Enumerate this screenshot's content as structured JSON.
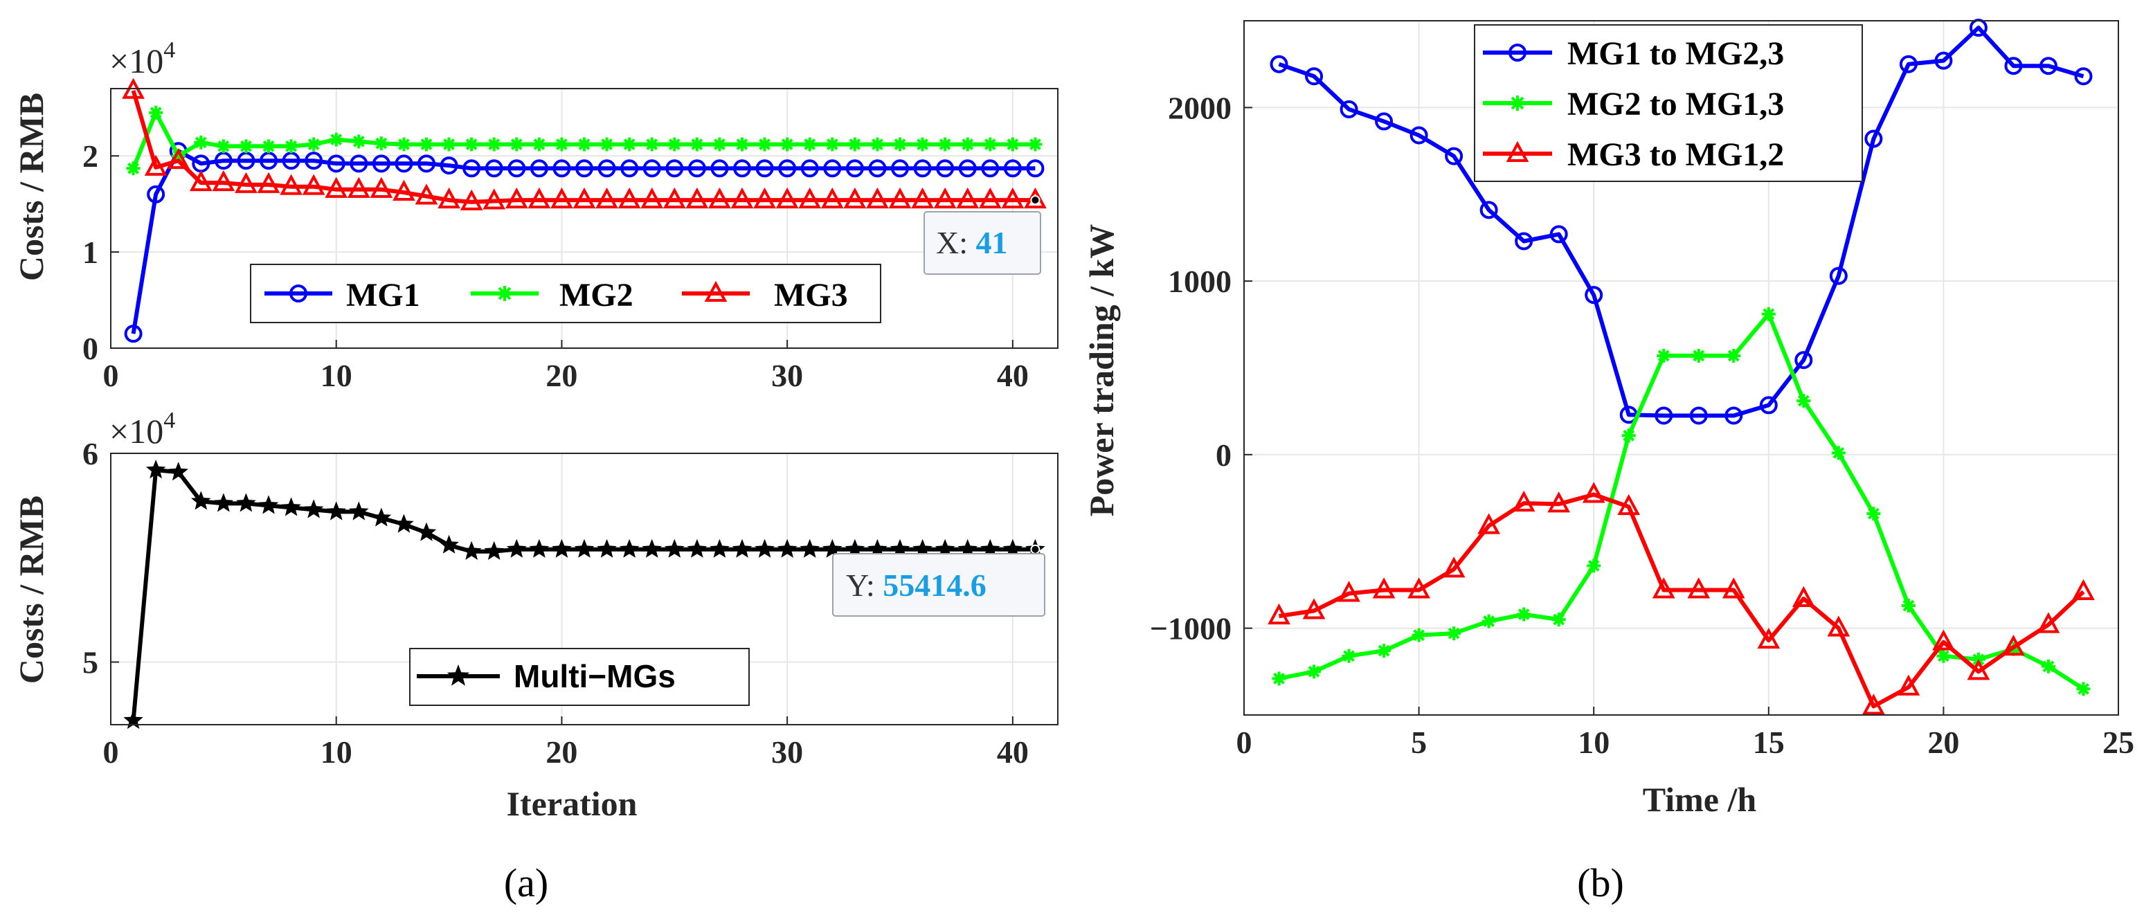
{
  "panels": {
    "a": {
      "caption": "(a)"
    },
    "b": {
      "caption": "(b)"
    }
  },
  "chart_data": [
    {
      "id": "a-top",
      "type": "line",
      "title": "",
      "xlabel": "",
      "ylabel": "Costs / RMB",
      "scale_label": "×10",
      "scale_exp": "4",
      "xlim": [
        0,
        42
      ],
      "ylim": [
        0,
        2.7
      ],
      "xticks": [
        0,
        10,
        20,
        30,
        40
      ],
      "yticks": [
        0,
        1,
        2
      ],
      "grid": true,
      "legend_position": "bottom-center",
      "x": [
        1,
        2,
        3,
        4,
        5,
        6,
        7,
        8,
        9,
        10,
        11,
        12,
        13,
        14,
        15,
        16,
        17,
        18,
        19,
        20,
        21,
        22,
        23,
        24,
        25,
        26,
        27,
        28,
        29,
        30,
        31,
        32,
        33,
        34,
        35,
        36,
        37,
        38,
        39,
        40,
        41
      ],
      "series": [
        {
          "name": "MG1",
          "color": "#0000ff",
          "marker": "circle",
          "values": [
            0.15,
            1.6,
            2.05,
            1.92,
            1.95,
            1.95,
            1.95,
            1.95,
            1.95,
            1.92,
            1.92,
            1.92,
            1.92,
            1.92,
            1.9,
            1.87,
            1.87,
            1.87,
            1.87,
            1.87,
            1.87,
            1.87,
            1.87,
            1.87,
            1.87,
            1.87,
            1.87,
            1.87,
            1.87,
            1.87,
            1.87,
            1.87,
            1.87,
            1.87,
            1.87,
            1.87,
            1.87,
            1.87,
            1.87,
            1.87,
            1.87
          ]
        },
        {
          "name": "MG2",
          "color": "#00ff00",
          "marker": "asterisk",
          "values": [
            1.87,
            2.45,
            2.0,
            2.14,
            2.1,
            2.1,
            2.1,
            2.1,
            2.12,
            2.17,
            2.15,
            2.13,
            2.12,
            2.12,
            2.12,
            2.12,
            2.12,
            2.12,
            2.12,
            2.12,
            2.12,
            2.12,
            2.12,
            2.12,
            2.12,
            2.12,
            2.12,
            2.12,
            2.12,
            2.12,
            2.12,
            2.12,
            2.12,
            2.12,
            2.12,
            2.12,
            2.12,
            2.12,
            2.12,
            2.12,
            2.12
          ]
        },
        {
          "name": "MG3",
          "color": "#ff0000",
          "marker": "triangle",
          "values": [
            2.68,
            1.88,
            1.95,
            1.72,
            1.72,
            1.7,
            1.7,
            1.68,
            1.68,
            1.65,
            1.65,
            1.65,
            1.62,
            1.58,
            1.54,
            1.52,
            1.53,
            1.54,
            1.54,
            1.54,
            1.54,
            1.54,
            1.54,
            1.54,
            1.54,
            1.54,
            1.54,
            1.54,
            1.54,
            1.54,
            1.54,
            1.54,
            1.54,
            1.54,
            1.54,
            1.54,
            1.54,
            1.54,
            1.54,
            1.54,
            1.54
          ]
        }
      ],
      "datatip": {
        "x": 41,
        "label": "X: ",
        "value": "41"
      }
    },
    {
      "id": "a-bottom",
      "type": "line",
      "title": "",
      "xlabel": "Iteration",
      "ylabel": "Costs / RMB",
      "scale_label": "×10",
      "scale_exp": "4",
      "xlim": [
        0,
        42
      ],
      "ylim": [
        4.7,
        6.0
      ],
      "xticks": [
        0,
        10,
        20,
        30,
        40
      ],
      "yticks": [
        5,
        6
      ],
      "yticklabels": [
        "5",
        "6"
      ],
      "grid": true,
      "legend_position": "bottom-center",
      "x": [
        1,
        2,
        3,
        4,
        5,
        6,
        7,
        8,
        9,
        10,
        11,
        12,
        13,
        14,
        15,
        16,
        17,
        18,
        19,
        20,
        21,
        22,
        23,
        24,
        25,
        26,
        27,
        28,
        29,
        30,
        31,
        32,
        33,
        34,
        35,
        36,
        37,
        38,
        39,
        40,
        41
      ],
      "series": [
        {
          "name": "Multi−MGs",
          "color": "#000000",
          "marker": "star",
          "values": [
            4.72,
            5.92,
            5.91,
            5.77,
            5.76,
            5.76,
            5.75,
            5.74,
            5.73,
            5.72,
            5.72,
            5.69,
            5.66,
            5.62,
            5.56,
            5.53,
            5.53,
            5.54,
            5.54,
            5.54,
            5.54,
            5.54,
            5.54,
            5.54,
            5.54,
            5.54,
            5.54,
            5.54,
            5.54,
            5.54,
            5.54,
            5.54,
            5.54,
            5.54,
            5.54,
            5.54,
            5.54,
            5.54,
            5.54,
            5.54,
            5.54
          ]
        }
      ],
      "datatip": {
        "x": 41,
        "label": "Y: ",
        "value": "55414.6"
      }
    },
    {
      "id": "b",
      "type": "line",
      "title": "",
      "xlabel": "Time /h",
      "ylabel": "Power trading / kW",
      "xlim": [
        0,
        25
      ],
      "ylim": [
        -1500,
        2500
      ],
      "xticks": [
        0,
        5,
        10,
        15,
        20,
        25
      ],
      "yticks": [
        -1000,
        0,
        1000,
        2000
      ],
      "yticklabels": [
        "−1000",
        "0",
        "1000",
        "2000"
      ],
      "grid": true,
      "legend_position": "top-center",
      "x": [
        1,
        2,
        3,
        4,
        5,
        6,
        7,
        8,
        9,
        10,
        11,
        12,
        13,
        14,
        15,
        16,
        17,
        18,
        19,
        20,
        21,
        22,
        23,
        24
      ],
      "series": [
        {
          "name": "MG1 to MG2,3",
          "color": "#0000ff",
          "marker": "circle",
          "values": [
            2250,
            2180,
            1990,
            1920,
            1840,
            1720,
            1410,
            1230,
            1270,
            920,
            230,
            225,
            225,
            225,
            285,
            545,
            1030,
            1820,
            2250,
            2270,
            2460,
            2240,
            2240,
            2180
          ]
        },
        {
          "name": "MG2 to MG1,3",
          "color": "#00ff00",
          "marker": "asterisk",
          "values": [
            -1290,
            -1250,
            -1160,
            -1130,
            -1040,
            -1030,
            -960,
            -920,
            -950,
            -640,
            110,
            570,
            570,
            570,
            810,
            310,
            10,
            -340,
            -870,
            -1160,
            -1180,
            -1120,
            -1220,
            -1350
          ]
        },
        {
          "name": "MG3 to MG1,2",
          "color": "#ff0000",
          "marker": "triangle",
          "values": [
            -930,
            -900,
            -800,
            -780,
            -780,
            -660,
            -410,
            -280,
            -285,
            -230,
            -300,
            -780,
            -780,
            -780,
            -1070,
            -830,
            -1000,
            -1450,
            -1340,
            -1080,
            -1250,
            -1110,
            -980,
            -790
          ]
        }
      ]
    }
  ]
}
